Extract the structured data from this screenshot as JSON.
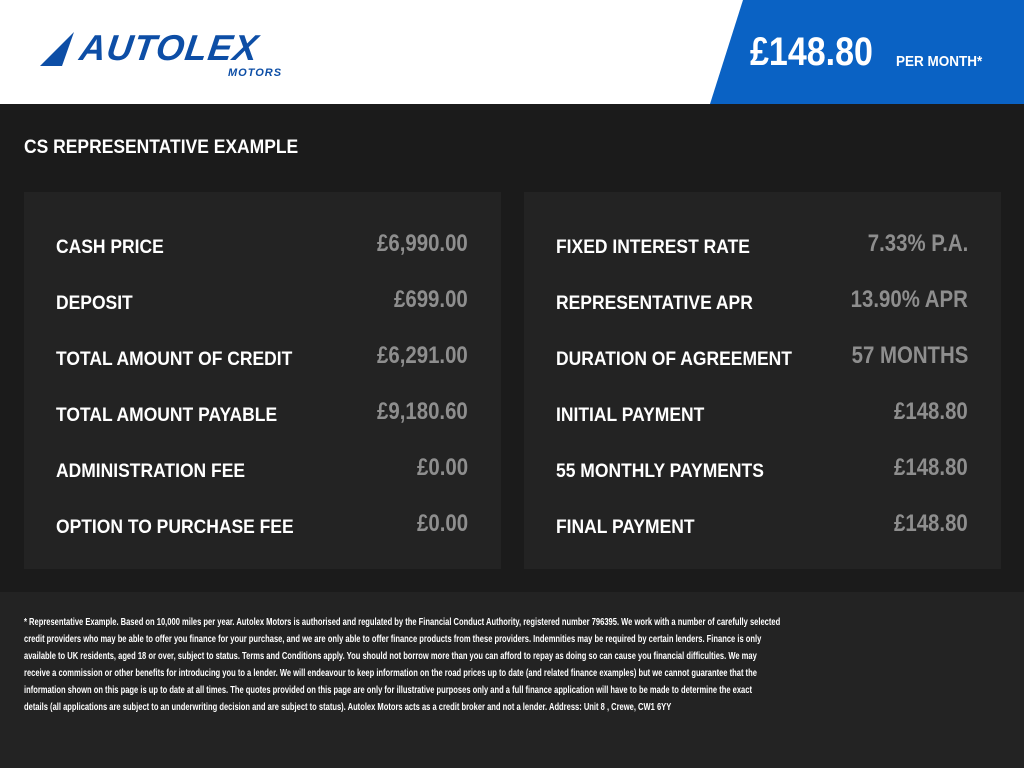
{
  "header": {
    "logo_text": "AUTOLEX",
    "logo_sub": "MOTORS",
    "price": "£148.80",
    "per_month": "PER MONTH*",
    "brand_color": "#0a62c4"
  },
  "title": "CS REPRESENTATIVE EXAMPLE",
  "left": [
    {
      "label": "CASH PRICE",
      "value": "£6,990.00"
    },
    {
      "label": "DEPOSIT",
      "value": "£699.00"
    },
    {
      "label": "TOTAL AMOUNT OF CREDIT",
      "value": "£6,291.00"
    },
    {
      "label": "TOTAL AMOUNT PAYABLE",
      "value": "£9,180.60"
    },
    {
      "label": "ADMINISTRATION FEE",
      "value": "£0.00"
    },
    {
      "label": "OPTION TO PURCHASE FEE",
      "value": "£0.00"
    }
  ],
  "right": [
    {
      "label": "FIXED INTEREST RATE",
      "value": "7.33% P.A."
    },
    {
      "label": "REPRESENTATIVE APR",
      "value": "13.90% APR"
    },
    {
      "label": "DURATION OF AGREEMENT",
      "value": "57 MONTHS"
    },
    {
      "label": "INITIAL PAYMENT",
      "value": "£148.80"
    },
    {
      "label": "55 MONTHLY PAYMENTS",
      "value": "£148.80"
    },
    {
      "label": "FINAL PAYMENT",
      "value": "£148.80"
    }
  ],
  "footer": [
    "* Representative Example. Based on 10,000 miles per year. Autolex Motors is authorised and regulated by the Financial Conduct Authority, registered number 796395. We work with a number of carefully selected",
    "credit providers who may be able to offer you finance for your purchase, and we are only able to offer finance products from these providers. Indemnities may be required by certain lenders. Finance is only",
    "available to UK residents, aged 18 or over, subject to status. Terms and Conditions apply. You should not borrow more than you can afford to repay as doing so can cause you financial difficulties. We may",
    "receive a commission or other benefits for introducing you to a lender. We will endeavour to keep information on the road prices up to date (and related finance examples) but we cannot guarantee that the",
    "information shown on this page is up to date at all times. The quotes provided on this page are only for illustrative purposes only and a full finance application will have to be made to determine the exact",
    "details (all applications are subject to an underwriting decision and are subject to status). Autolex Motors acts as a credit broker and not a lender. Address: Unit 8 , Crewe, CW1 6YY"
  ]
}
